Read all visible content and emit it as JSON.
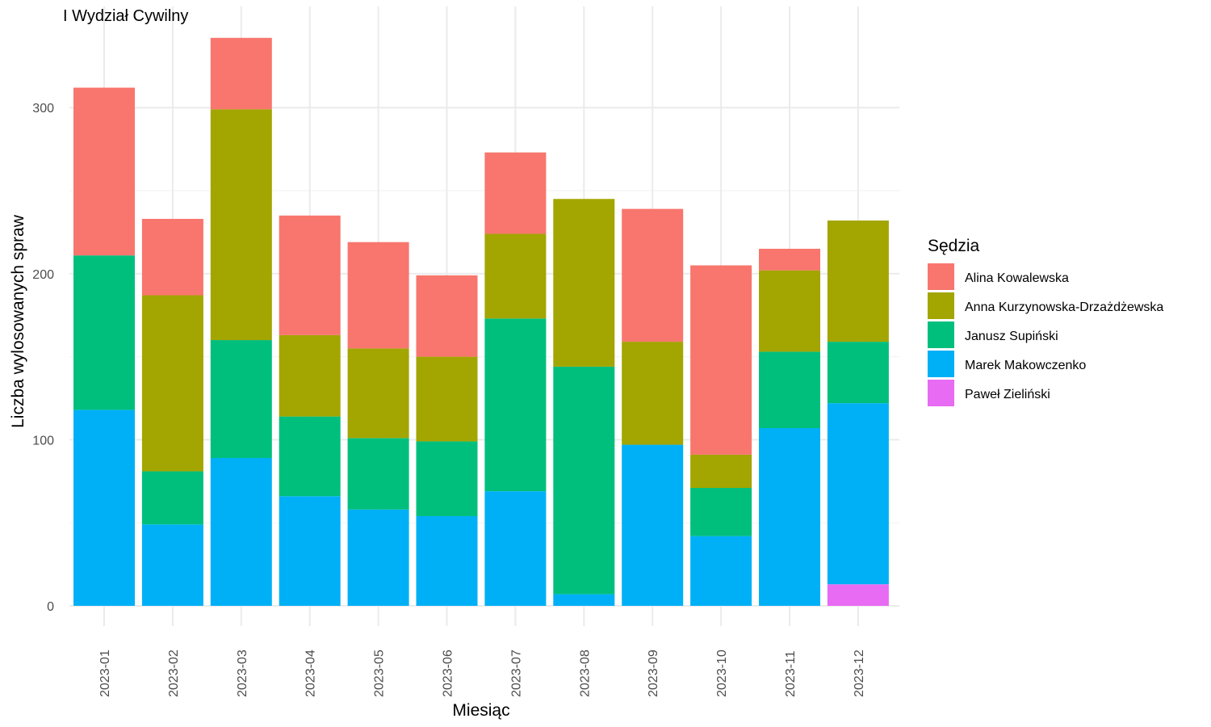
{
  "chart_data": {
    "type": "bar",
    "stacked": true,
    "title": "I Wydział Cywilny",
    "xlabel": "Miesiąc",
    "ylabel": "Liczba wylosowanych spraw",
    "ylim": [
      0,
      345
    ],
    "yticks": [
      0,
      100,
      200,
      300
    ],
    "grid": true,
    "legend_title": "Sędzia",
    "legend_position": "right",
    "categories": [
      "2023-01",
      "2023-02",
      "2023-03",
      "2023-04",
      "2023-05",
      "2023-06",
      "2023-07",
      "2023-08",
      "2023-09",
      "2023-10",
      "2023-11",
      "2023-12"
    ],
    "series": [
      {
        "name": "Alina Kowalewska",
        "color": "#F8766D",
        "values": [
          101,
          46,
          43,
          72,
          64,
          49,
          49,
          0,
          80,
          114,
          13,
          0
        ]
      },
      {
        "name": "Anna Kurzynowska-Drzażdżewska",
        "color": "#A3A500",
        "values": [
          0,
          106,
          139,
          49,
          54,
          51,
          51,
          101,
          62,
          20,
          49,
          73
        ]
      },
      {
        "name": "Janusz Supiński",
        "color": "#00BF7D",
        "values": [
          93,
          32,
          71,
          48,
          43,
          45,
          104,
          137,
          0,
          29,
          46,
          37
        ]
      },
      {
        "name": "Marek Makowczenko",
        "color": "#00B0F6",
        "values": [
          118,
          49,
          89,
          66,
          58,
          54,
          69,
          7,
          97,
          42,
          107,
          109
        ]
      },
      {
        "name": "Paweł Zieliński",
        "color": "#E76BF3",
        "values": [
          0,
          0,
          0,
          0,
          0,
          0,
          0,
          0,
          0,
          0,
          0,
          13
        ]
      }
    ]
  }
}
